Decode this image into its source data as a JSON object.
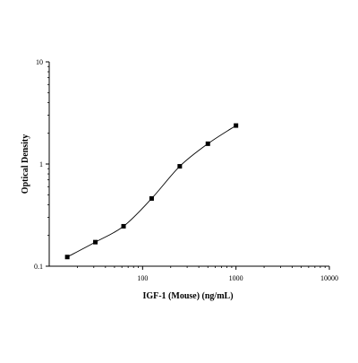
{
  "chart_data": {
    "type": "scatter",
    "xlabel": "IGF-1 (Mouse) (ng/mL)",
    "ylabel": "Optical Density",
    "x_scale": "log",
    "y_scale": "log",
    "xlim": [
      10,
      10000
    ],
    "ylim": [
      0.1,
      10
    ],
    "x_ticks": [
      {
        "value": 100,
        "label": "100"
      },
      {
        "value": 1000,
        "label": "1000"
      },
      {
        "value": 10000,
        "label": "10000"
      }
    ],
    "y_ticks": [
      {
        "value": 0.1,
        "label": "0.1"
      },
      {
        "value": 1,
        "label": "1"
      },
      {
        "value": 10,
        "label": "10"
      }
    ],
    "grid": false,
    "legend": "none",
    "series": [
      {
        "x": [
          15.6,
          31.2,
          62.5,
          125,
          250,
          500,
          1000
        ],
        "y": [
          0.123,
          0.172,
          0.246,
          0.46,
          0.95,
          1.58,
          2.38
        ],
        "marker": "square",
        "fit_line": true,
        "color": "#000000"
      }
    ]
  }
}
